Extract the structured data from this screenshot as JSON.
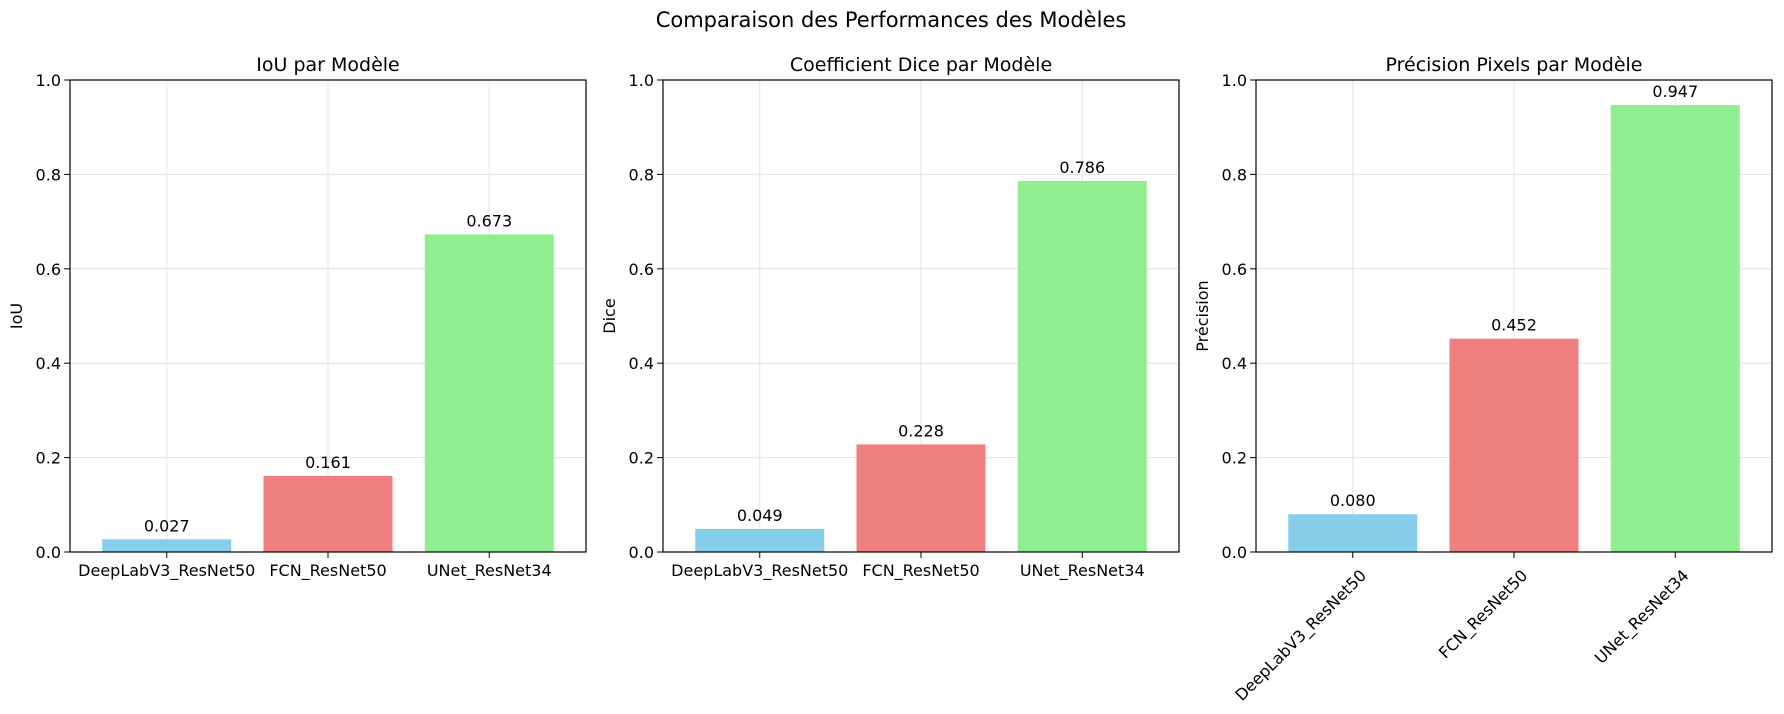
{
  "figure": {
    "suptitle": "Comparaison des Performances des Modèles"
  },
  "colors": {
    "bars": [
      "#87CEEB",
      "#F08080",
      "#90EE90"
    ],
    "grid": "#e3e3e3",
    "axis": "#000000"
  },
  "chart_data": [
    {
      "type": "bar",
      "title": "IoU par Modèle",
      "xlabel": "",
      "ylabel": "IoU",
      "categories": [
        "DeepLabV3_ResNet50",
        "FCN_ResNet50",
        "UNet_ResNet34"
      ],
      "values": [
        0.027,
        0.161,
        0.673
      ],
      "value_labels": [
        "0.027",
        "0.161",
        "0.673"
      ],
      "ylim": [
        0,
        1.0
      ],
      "yticks": [
        "0.0",
        "0.2",
        "0.4",
        "0.6",
        "0.8",
        "1.0"
      ],
      "xtick_rotation": 0,
      "grid": true
    },
    {
      "type": "bar",
      "title": "Coefficient Dice par Modèle",
      "xlabel": "",
      "ylabel": "Dice",
      "categories": [
        "DeepLabV3_ResNet50",
        "FCN_ResNet50",
        "UNet_ResNet34"
      ],
      "values": [
        0.049,
        0.228,
        0.786
      ],
      "value_labels": [
        "0.049",
        "0.228",
        "0.786"
      ],
      "ylim": [
        0,
        1.0
      ],
      "yticks": [
        "0.0",
        "0.2",
        "0.4",
        "0.6",
        "0.8",
        "1.0"
      ],
      "xtick_rotation": 0,
      "grid": true
    },
    {
      "type": "bar",
      "title": "Précision Pixels par Modèle",
      "xlabel": "",
      "ylabel": "Précision",
      "categories": [
        "DeepLabV3_ResNet50",
        "FCN_ResNet50",
        "UNet_ResNet34"
      ],
      "values": [
        0.08,
        0.452,
        0.947
      ],
      "value_labels": [
        "0.080",
        "0.452",
        "0.947"
      ],
      "ylim": [
        0,
        1.0
      ],
      "yticks": [
        "0.0",
        "0.2",
        "0.4",
        "0.6",
        "0.8",
        "1.0"
      ],
      "xtick_rotation": 45,
      "grid": true
    }
  ]
}
